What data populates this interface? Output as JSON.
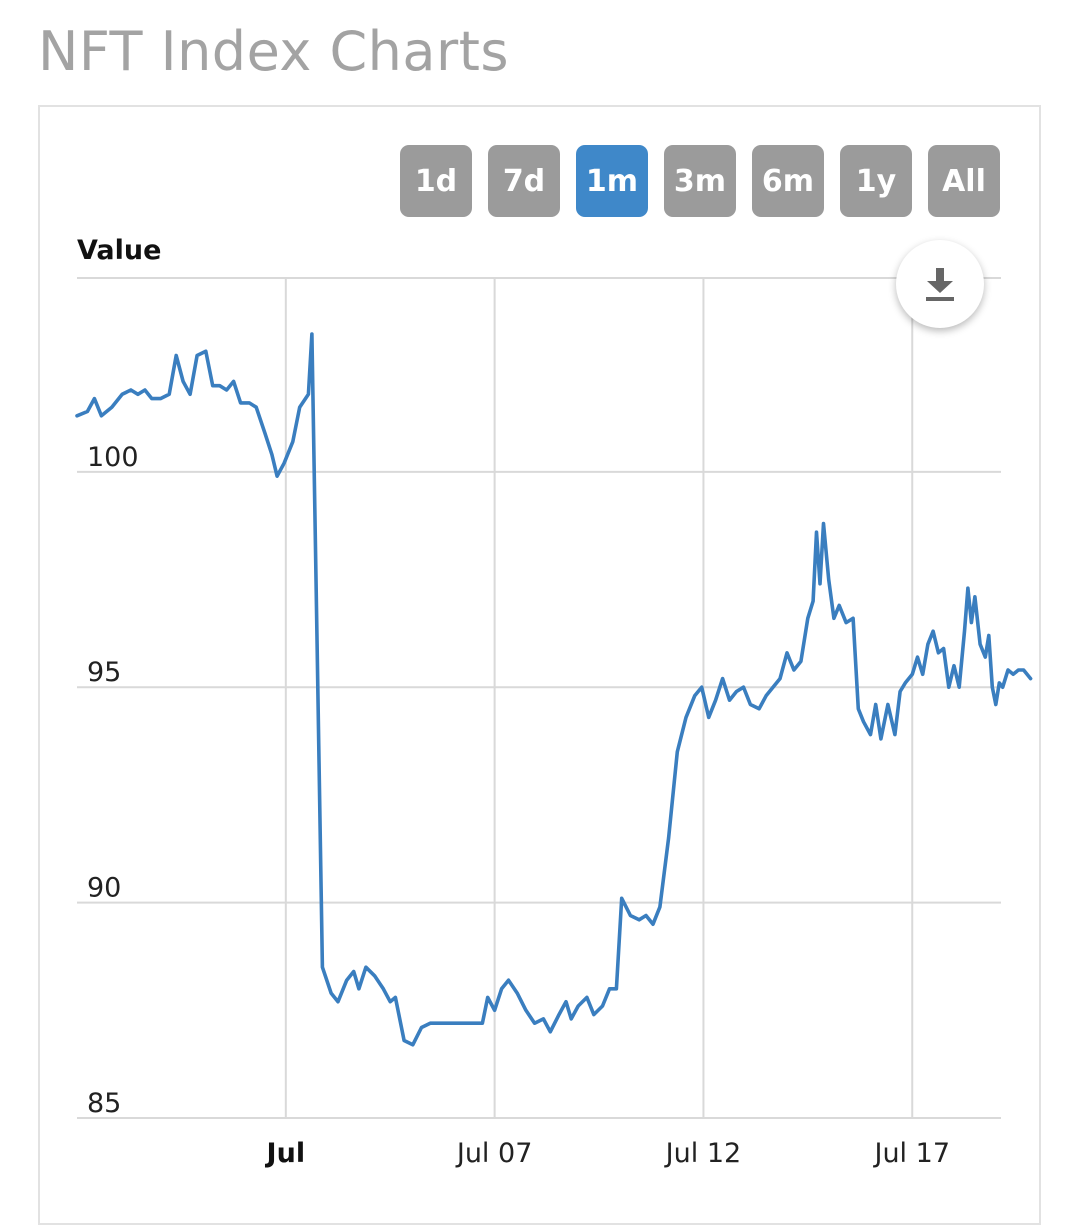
{
  "page": {
    "title": "NFT Index Charts"
  },
  "range_selector": {
    "buttons": [
      {
        "label": "1d",
        "active": false
      },
      {
        "label": "7d",
        "active": false
      },
      {
        "label": "1m",
        "active": true
      },
      {
        "label": "3m",
        "active": false
      },
      {
        "label": "6m",
        "active": false
      },
      {
        "label": "1y",
        "active": false
      },
      {
        "label": "All",
        "active": false
      }
    ]
  },
  "download": {
    "icon": "download-icon"
  },
  "colors": {
    "line": "#3a7ebf",
    "button": "#9b9b9b",
    "button_active": "#3f88c9",
    "grid": "#d9d9d9"
  },
  "chart_data": {
    "type": "line",
    "title": "",
    "ylabel": "Value",
    "xlabel": "",
    "ylim": [
      85,
      104.5
    ],
    "yticks": [
      85,
      90,
      95,
      100
    ],
    "xlim": [
      "2021-06-27",
      "2021-07-19T03:00"
    ],
    "xticks": [
      {
        "date": "2021-07-02",
        "label": "Jul",
        "bold": true
      },
      {
        "date": "2021-07-07",
        "label": "Jul 07",
        "bold": false
      },
      {
        "date": "2021-07-12",
        "label": "Jul 12",
        "bold": false
      },
      {
        "date": "2021-07-17",
        "label": "Jul 17",
        "bold": false
      }
    ],
    "grid": true,
    "series": [
      {
        "name": "",
        "color": "#3a7ebf",
        "points": [
          [
            "2021-06-27T00:00",
            101.3
          ],
          [
            "2021-06-27T06:00",
            101.4
          ],
          [
            "2021-06-27T10:00",
            101.7
          ],
          [
            "2021-06-27T14:00",
            101.3
          ],
          [
            "2021-06-27T20:00",
            101.5
          ],
          [
            "2021-06-28T02:00",
            101.8
          ],
          [
            "2021-06-28T07:00",
            101.9
          ],
          [
            "2021-06-28T11:00",
            101.8
          ],
          [
            "2021-06-28T15:00",
            101.9
          ],
          [
            "2021-06-28T19:00",
            101.7
          ],
          [
            "2021-06-29T00:00",
            101.7
          ],
          [
            "2021-06-29T05:00",
            101.8
          ],
          [
            "2021-06-29T09:00",
            102.7
          ],
          [
            "2021-06-29T13:00",
            102.1
          ],
          [
            "2021-06-29T17:00",
            101.8
          ],
          [
            "2021-06-29T21:00",
            102.7
          ],
          [
            "2021-06-30T02:00",
            102.8
          ],
          [
            "2021-06-30T06:00",
            102.0
          ],
          [
            "2021-06-30T10:00",
            102.0
          ],
          [
            "2021-06-30T14:00",
            101.9
          ],
          [
            "2021-06-30T18:00",
            102.1
          ],
          [
            "2021-06-30T22:00",
            101.6
          ],
          [
            "2021-07-01T03:00",
            101.6
          ],
          [
            "2021-07-01T07:00",
            101.5
          ],
          [
            "2021-07-01T12:00",
            100.9
          ],
          [
            "2021-07-01T16:00",
            100.4
          ],
          [
            "2021-07-01T19:00",
            99.9
          ],
          [
            "2021-07-01T23:00",
            100.2
          ],
          [
            "2021-07-02T04:00",
            100.7
          ],
          [
            "2021-07-02T08:00",
            101.5
          ],
          [
            "2021-07-02T13:00",
            101.8
          ],
          [
            "2021-07-02T15:00",
            103.2
          ],
          [
            "2021-07-02T18:00",
            96.0
          ],
          [
            "2021-07-02T21:00",
            88.5
          ],
          [
            "2021-07-03T02:00",
            87.9
          ],
          [
            "2021-07-03T06:00",
            87.7
          ],
          [
            "2021-07-03T11:00",
            88.2
          ],
          [
            "2021-07-03T15:00",
            88.4
          ],
          [
            "2021-07-03T18:00",
            88.0
          ],
          [
            "2021-07-03T22:00",
            88.5
          ],
          [
            "2021-07-04T03:00",
            88.3
          ],
          [
            "2021-07-04T08:00",
            88.0
          ],
          [
            "2021-07-04T12:00",
            87.7
          ],
          [
            "2021-07-04T15:00",
            87.8
          ],
          [
            "2021-07-04T20:00",
            86.8
          ],
          [
            "2021-07-05T01:00",
            86.7
          ],
          [
            "2021-07-05T06:00",
            87.1
          ],
          [
            "2021-07-05T11:00",
            87.2
          ],
          [
            "2021-07-05T16:00",
            87.2
          ],
          [
            "2021-07-05T21:00",
            87.2
          ],
          [
            "2021-07-06T02:00",
            87.2
          ],
          [
            "2021-07-06T07:00",
            87.2
          ],
          [
            "2021-07-06T12:00",
            87.2
          ],
          [
            "2021-07-06T17:00",
            87.2
          ],
          [
            "2021-07-06T20:00",
            87.8
          ],
          [
            "2021-07-07T00:00",
            87.5
          ],
          [
            "2021-07-07T04:00",
            88.0
          ],
          [
            "2021-07-07T08:00",
            88.2
          ],
          [
            "2021-07-07T13:00",
            87.9
          ],
          [
            "2021-07-07T18:00",
            87.5
          ],
          [
            "2021-07-07T23:00",
            87.2
          ],
          [
            "2021-07-08T04:00",
            87.3
          ],
          [
            "2021-07-08T08:00",
            87.0
          ],
          [
            "2021-07-08T13:00",
            87.4
          ],
          [
            "2021-07-08T17:00",
            87.7
          ],
          [
            "2021-07-08T20:00",
            87.3
          ],
          [
            "2021-07-09T00:00",
            87.6
          ],
          [
            "2021-07-09T05:00",
            87.8
          ],
          [
            "2021-07-09T09:00",
            87.4
          ],
          [
            "2021-07-09T14:00",
            87.6
          ],
          [
            "2021-07-09T18:00",
            88.0
          ],
          [
            "2021-07-09T22:00",
            88.0
          ],
          [
            "2021-07-10T01:00",
            90.1
          ],
          [
            "2021-07-10T06:00",
            89.7
          ],
          [
            "2021-07-10T11:00",
            89.6
          ],
          [
            "2021-07-10T15:00",
            89.7
          ],
          [
            "2021-07-10T19:00",
            89.5
          ],
          [
            "2021-07-10T23:00",
            89.9
          ],
          [
            "2021-07-11T04:00",
            91.5
          ],
          [
            "2021-07-11T09:00",
            93.5
          ],
          [
            "2021-07-11T14:00",
            94.3
          ],
          [
            "2021-07-11T19:00",
            94.8
          ],
          [
            "2021-07-11T23:00",
            95.0
          ],
          [
            "2021-07-12T03:00",
            94.3
          ],
          [
            "2021-07-12T07:00",
            94.7
          ],
          [
            "2021-07-12T11:00",
            95.2
          ],
          [
            "2021-07-12T15:00",
            94.7
          ],
          [
            "2021-07-12T19:00",
            94.9
          ],
          [
            "2021-07-12T23:00",
            95.0
          ],
          [
            "2021-07-13T03:00",
            94.6
          ],
          [
            "2021-07-13T08:00",
            94.5
          ],
          [
            "2021-07-13T12:00",
            94.8
          ],
          [
            "2021-07-13T16:00",
            95.0
          ],
          [
            "2021-07-13T20:00",
            95.2
          ],
          [
            "2021-07-14T00:00",
            95.8
          ],
          [
            "2021-07-14T04:00",
            95.4
          ],
          [
            "2021-07-14T08:00",
            95.6
          ],
          [
            "2021-07-14T12:00",
            96.6
          ],
          [
            "2021-07-14T15:00",
            97.0
          ],
          [
            "2021-07-14T17:00",
            98.6
          ],
          [
            "2021-07-14T19:00",
            97.4
          ],
          [
            "2021-07-14T21:00",
            98.8
          ],
          [
            "2021-07-15T00:00",
            97.5
          ],
          [
            "2021-07-15T03:00",
            96.6
          ],
          [
            "2021-07-15T06:00",
            96.9
          ],
          [
            "2021-07-15T10:00",
            96.5
          ],
          [
            "2021-07-15T14:00",
            96.6
          ],
          [
            "2021-07-15T17:00",
            94.5
          ],
          [
            "2021-07-15T20:00",
            94.2
          ],
          [
            "2021-07-16T00:00",
            93.9
          ],
          [
            "2021-07-16T03:00",
            94.6
          ],
          [
            "2021-07-16T06:00",
            93.8
          ],
          [
            "2021-07-16T10:00",
            94.6
          ],
          [
            "2021-07-16T14:00",
            93.9
          ],
          [
            "2021-07-16T17:00",
            94.9
          ],
          [
            "2021-07-16T20:00",
            95.1
          ],
          [
            "2021-07-17T00:00",
            95.3
          ],
          [
            "2021-07-17T03:00",
            95.7
          ],
          [
            "2021-07-17T06:00",
            95.3
          ],
          [
            "2021-07-17T09:00",
            96.0
          ],
          [
            "2021-07-17T12:00",
            96.3
          ],
          [
            "2021-07-17T15:00",
            95.8
          ],
          [
            "2021-07-17T18:00",
            95.9
          ],
          [
            "2021-07-17T21:00",
            95.0
          ],
          [
            "2021-07-18T00:00",
            95.5
          ],
          [
            "2021-07-18T03:00",
            95.0
          ],
          [
            "2021-07-18T06:00",
            96.3
          ],
          [
            "2021-07-18T08:00",
            97.3
          ],
          [
            "2021-07-18T10:00",
            96.5
          ],
          [
            "2021-07-18T12:00",
            97.1
          ],
          [
            "2021-07-18T15:00",
            96.0
          ],
          [
            "2021-07-18T18:00",
            95.7
          ],
          [
            "2021-07-18T20:00",
            96.2
          ],
          [
            "2021-07-18T22:00",
            95.0
          ],
          [
            "2021-07-19T00:00",
            94.6
          ],
          [
            "2021-07-19T02:00",
            95.1
          ],
          [
            "2021-07-19T04:00",
            95.0
          ],
          [
            "2021-07-19T07:00",
            95.4
          ],
          [
            "2021-07-19T10:00",
            95.3
          ],
          [
            "2021-07-19T13:00",
            95.4
          ],
          [
            "2021-07-19T16:00",
            95.4
          ],
          [
            "2021-07-19T20:00",
            95.2
          ]
        ]
      }
    ]
  }
}
